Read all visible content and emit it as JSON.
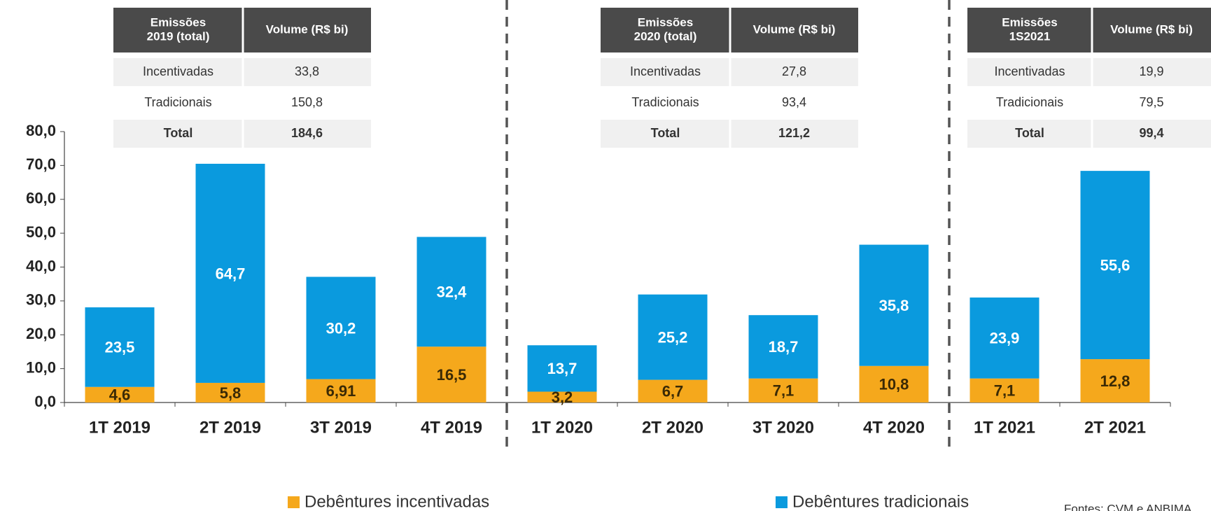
{
  "chart_data": {
    "type": "stacked_bar",
    "categories": [
      "1T 2019",
      "2T 2019",
      "3T 2019",
      "4T 2019",
      "1T 2020",
      "2T 2020",
      "3T 2020",
      "4T 2020",
      "1T 2021",
      "2T 2021"
    ],
    "series": [
      {
        "name": "Debêntures incentivadas",
        "color": "#f5a81c",
        "values": [
          4.6,
          5.8,
          6.91,
          16.5,
          3.2,
          6.7,
          7.1,
          10.8,
          7.1,
          12.8
        ],
        "value_labels": [
          "4,6",
          "5,8",
          "6,91",
          "16,5",
          "3,2",
          "6,7",
          "7,1",
          "10,8",
          "7,1",
          "12,8"
        ]
      },
      {
        "name": "Debêntures tradicionais",
        "color": "#0a9ade",
        "values": [
          23.5,
          64.7,
          30.2,
          32.4,
          13.7,
          25.2,
          18.7,
          35.8,
          23.9,
          55.6
        ],
        "value_labels": [
          "23,5",
          "64,7",
          "30,2",
          "32,4",
          "13,7",
          "25,2",
          "18,7",
          "35,8",
          "23,9",
          "55,6"
        ]
      }
    ],
    "ylim": [
      0,
      80
    ],
    "yticks": [
      {
        "value": 0,
        "label": "0,0"
      },
      {
        "value": 10,
        "label": "10,0"
      },
      {
        "value": 20,
        "label": "20,0"
      },
      {
        "value": 30,
        "label": "30,0"
      },
      {
        "value": 40,
        "label": "40,0"
      },
      {
        "value": 50,
        "label": "50,0"
      },
      {
        "value": 60,
        "label": "60,0"
      },
      {
        "value": 70,
        "label": "70,0"
      },
      {
        "value": 80,
        "label": "80,0"
      }
    ],
    "grid": false,
    "legend": "bottom"
  },
  "tables": [
    {
      "header": [
        [
          "Emissões",
          "2019 (total)"
        ],
        [
          "Volume (R$ bi)"
        ]
      ],
      "rows": [
        [
          "Incentivadas",
          "33,8"
        ],
        [
          "Tradicionais",
          "150,8"
        ],
        [
          "Total",
          "184,6"
        ]
      ]
    },
    {
      "header": [
        [
          "Emissões",
          "2020 (total)"
        ],
        [
          "Volume (R$ bi)"
        ]
      ],
      "rows": [
        [
          "Incentivadas",
          "27,8"
        ],
        [
          "Tradicionais",
          "93,4"
        ],
        [
          "Total",
          "121,2"
        ]
      ]
    },
    {
      "header": [
        [
          "Emissões",
          "1S2021"
        ],
        [
          "Volume (R$ bi)"
        ]
      ],
      "rows": [
        [
          "Incentivadas",
          "19,9"
        ],
        [
          "Tradicionais",
          "79,5"
        ],
        [
          "Total",
          "99,4"
        ]
      ]
    }
  ],
  "source": "Fontes: CVM e ANBIMA"
}
